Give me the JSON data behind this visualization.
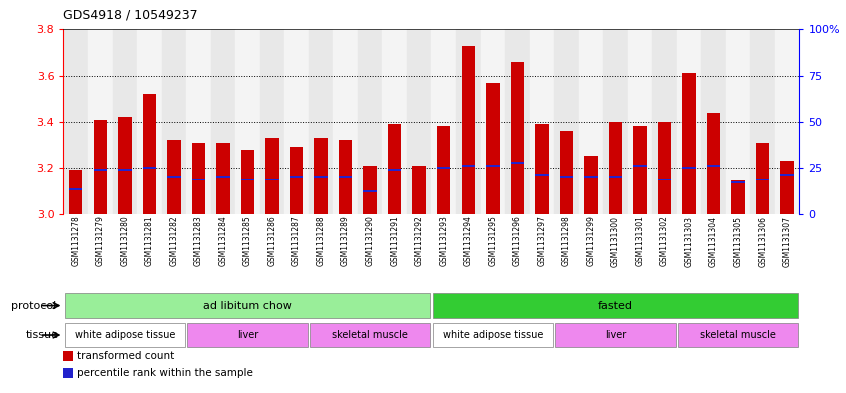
{
  "title": "GDS4918 / 10549237",
  "samples": [
    "GSM1131278",
    "GSM1131279",
    "GSM1131280",
    "GSM1131281",
    "GSM1131282",
    "GSM1131283",
    "GSM1131284",
    "GSM1131285",
    "GSM1131286",
    "GSM1131287",
    "GSM1131288",
    "GSM1131289",
    "GSM1131290",
    "GSM1131291",
    "GSM1131292",
    "GSM1131293",
    "GSM1131294",
    "GSM1131295",
    "GSM1131296",
    "GSM1131297",
    "GSM1131298",
    "GSM1131299",
    "GSM1131300",
    "GSM1131301",
    "GSM1131302",
    "GSM1131303",
    "GSM1131304",
    "GSM1131305",
    "GSM1131306",
    "GSM1131307"
  ],
  "bar_tops": [
    3.19,
    3.41,
    3.42,
    3.52,
    3.32,
    3.31,
    3.31,
    3.28,
    3.33,
    3.29,
    3.33,
    3.32,
    3.21,
    3.39,
    3.21,
    3.38,
    3.73,
    3.57,
    3.66,
    3.39,
    3.36,
    3.25,
    3.4,
    3.38,
    3.4,
    3.61,
    3.44,
    3.15,
    3.31,
    3.23
  ],
  "blue_positions": [
    3.11,
    3.19,
    3.19,
    3.2,
    3.16,
    3.15,
    3.16,
    3.15,
    3.15,
    3.16,
    3.16,
    3.16,
    3.1,
    3.19,
    3.21,
    3.2,
    3.21,
    3.21,
    3.22,
    3.17,
    3.16,
    3.16,
    3.16,
    3.21,
    3.15,
    3.2,
    3.21,
    3.14,
    3.15,
    3.17
  ],
  "ylim_left": [
    3.0,
    3.8
  ],
  "ylim_right": [
    0,
    100
  ],
  "yticks_left": [
    3.0,
    3.2,
    3.4,
    3.6,
    3.8
  ],
  "yticks_right": [
    0,
    25,
    50,
    75,
    100
  ],
  "ytick_labels_right": [
    "0",
    "25",
    "50",
    "75",
    "100%"
  ],
  "bar_color": "#cc0000",
  "blue_color": "#2222cc",
  "bar_width": 0.55,
  "protocol_labels": [
    {
      "text": "ad libitum chow",
      "start": 0,
      "end": 15,
      "color": "#99ee99"
    },
    {
      "text": "fasted",
      "start": 15,
      "end": 30,
      "color": "#33cc33"
    }
  ],
  "tissue_labels": [
    {
      "text": "white adipose tissue",
      "start": 0,
      "end": 5,
      "color": "#ffffff"
    },
    {
      "text": "liver",
      "start": 5,
      "end": 10,
      "color": "#ee88ee"
    },
    {
      "text": "skeletal muscle",
      "start": 10,
      "end": 15,
      "color": "#ee88ee"
    },
    {
      "text": "white adipose tissue",
      "start": 15,
      "end": 20,
      "color": "#ffffff"
    },
    {
      "text": "liver",
      "start": 20,
      "end": 25,
      "color": "#ee88ee"
    },
    {
      "text": "skeletal muscle",
      "start": 25,
      "end": 30,
      "color": "#ee88ee"
    }
  ],
  "protocol_row_label": "protocol",
  "tissue_row_label": "tissue",
  "legend_items": [
    {
      "label": "transformed count",
      "color": "#cc0000"
    },
    {
      "label": "percentile rank within the sample",
      "color": "#2222cc"
    }
  ],
  "grid_color": "black",
  "background_color": "#ffffff",
  "col_bg_even": "#e8e8e8",
  "col_bg_odd": "#f4f4f4"
}
